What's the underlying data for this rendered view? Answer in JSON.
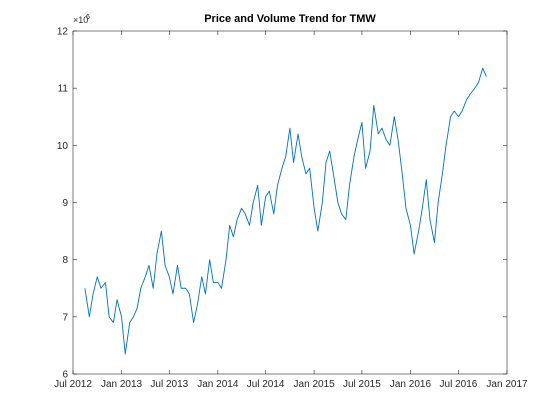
{
  "chart_data": {
    "type": "line",
    "title": "Price and Volume Trend for TMW",
    "xlabel": "",
    "ylabel": "",
    "y_exponent_label": "×10",
    "y_exponent_power": "6",
    "xlim": [
      "2012-07-01",
      "2017-01-01"
    ],
    "ylim": [
      6,
      12
    ],
    "x_ticks": [
      {
        "date": "2012-07-01",
        "label": "Jul 2012"
      },
      {
        "date": "2013-01-01",
        "label": "Jan 2013"
      },
      {
        "date": "2013-07-01",
        "label": "Jul 2013"
      },
      {
        "date": "2014-01-01",
        "label": "Jan 2014"
      },
      {
        "date": "2014-07-01",
        "label": "Jul 2014"
      },
      {
        "date": "2015-01-01",
        "label": "Jan 2015"
      },
      {
        "date": "2015-07-01",
        "label": "Jul 2015"
      },
      {
        "date": "2016-01-01",
        "label": "Jan 2016"
      },
      {
        "date": "2016-07-01",
        "label": "Jul 2016"
      },
      {
        "date": "2017-01-01",
        "label": "Jan 2017"
      }
    ],
    "y_ticks": [
      {
        "value": 6,
        "label": "6"
      },
      {
        "value": 7,
        "label": "7"
      },
      {
        "value": 8,
        "label": "8"
      },
      {
        "value": 9,
        "label": "9"
      },
      {
        "value": 10,
        "label": "10"
      },
      {
        "value": 11,
        "label": "11"
      },
      {
        "value": 12,
        "label": "12"
      }
    ],
    "grid": false,
    "line_color": "#0072bd",
    "series": [
      {
        "x": [
          "2012-08-15",
          "2012-09-01",
          "2012-09-15",
          "2012-10-01",
          "2012-10-15",
          "2012-11-01",
          "2012-11-15",
          "2012-12-01",
          "2012-12-15",
          "2013-01-01",
          "2013-01-15",
          "2013-02-01",
          "2013-02-15",
          "2013-03-01",
          "2013-03-15",
          "2013-04-01",
          "2013-04-15",
          "2013-05-01",
          "2013-05-15",
          "2013-06-01",
          "2013-06-15",
          "2013-07-01",
          "2013-07-15",
          "2013-08-01",
          "2013-08-15",
          "2013-09-01",
          "2013-09-15",
          "2013-10-01",
          "2013-10-15",
          "2013-11-01",
          "2013-11-15",
          "2013-12-01",
          "2013-12-15",
          "2014-01-01",
          "2014-01-15",
          "2014-02-01",
          "2014-02-15",
          "2014-03-01",
          "2014-03-15",
          "2014-04-01",
          "2014-04-15",
          "2014-05-01",
          "2014-05-15",
          "2014-06-01",
          "2014-06-15",
          "2014-07-01",
          "2014-07-15",
          "2014-08-01",
          "2014-08-15",
          "2014-09-01",
          "2014-09-15",
          "2014-10-01",
          "2014-10-15",
          "2014-11-01",
          "2014-11-15",
          "2014-12-01",
          "2014-12-15",
          "2015-01-01",
          "2015-01-15",
          "2015-02-01",
          "2015-02-15",
          "2015-03-01",
          "2015-03-15",
          "2015-04-01",
          "2015-04-15",
          "2015-05-01",
          "2015-05-15",
          "2015-06-01",
          "2015-06-15",
          "2015-07-01",
          "2015-07-15",
          "2015-08-01",
          "2015-08-15",
          "2015-09-01",
          "2015-09-15",
          "2015-10-01",
          "2015-10-15",
          "2015-11-01",
          "2015-11-15",
          "2015-12-01",
          "2015-12-15",
          "2016-01-01",
          "2016-01-15",
          "2016-02-01",
          "2016-02-15",
          "2016-03-01",
          "2016-03-15",
          "2016-04-01",
          "2016-04-15",
          "2016-05-01",
          "2016-05-15",
          "2016-06-01",
          "2016-06-15",
          "2016-07-01",
          "2016-07-15",
          "2016-08-01",
          "2016-08-15",
          "2016-09-01",
          "2016-09-15",
          "2016-10-01",
          "2016-10-15"
        ],
        "values": [
          7.5,
          7.0,
          7.4,
          7.7,
          7.5,
          7.6,
          7.0,
          6.9,
          7.3,
          7.0,
          6.35,
          6.9,
          7.0,
          7.15,
          7.5,
          7.7,
          7.9,
          7.5,
          8.1,
          8.5,
          7.9,
          7.7,
          7.4,
          7.9,
          7.5,
          7.5,
          7.4,
          6.9,
          7.2,
          7.7,
          7.4,
          8.0,
          7.6,
          7.6,
          7.5,
          8.0,
          8.6,
          8.4,
          8.7,
          8.9,
          8.8,
          8.6,
          9.0,
          9.3,
          8.6,
          9.1,
          9.2,
          8.8,
          9.3,
          9.6,
          9.8,
          10.3,
          9.7,
          10.2,
          9.8,
          9.5,
          9.6,
          8.9,
          8.5,
          9.0,
          9.7,
          9.9,
          9.5,
          9.0,
          8.8,
          8.7,
          9.3,
          9.8,
          10.1,
          10.4,
          9.6,
          9.9,
          10.7,
          10.2,
          10.3,
          10.1,
          10.0,
          10.5,
          10.1,
          9.5,
          8.9,
          8.6,
          8.1,
          8.5,
          8.9,
          9.4,
          8.7,
          8.3,
          9.0,
          9.5,
          10.0,
          10.5,
          10.6,
          10.5,
          10.6,
          10.8,
          10.9,
          11.0,
          11.1,
          11.35,
          11.2
        ]
      }
    ]
  }
}
